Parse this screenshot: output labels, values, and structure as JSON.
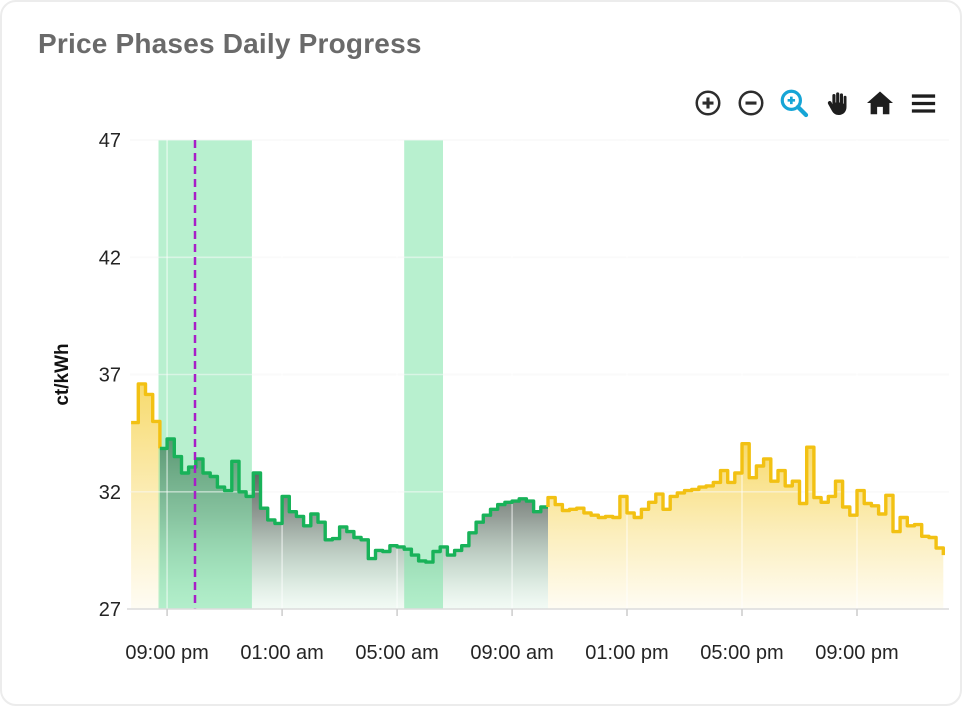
{
  "card": {
    "title": "Price Phases Daily Progress"
  },
  "toolbar": {
    "icon_color": "#2d2d2d",
    "active_color": "#16a5d6",
    "icons": [
      {
        "name": "zoom-in-icon",
        "active": false
      },
      {
        "name": "zoom-out-icon",
        "active": false
      },
      {
        "name": "box-zoom-magnifier-icon",
        "active": true
      },
      {
        "name": "pan-hand-icon",
        "active": false
      },
      {
        "name": "home-reset-icon",
        "active": false
      },
      {
        "name": "menu-icon",
        "active": false
      }
    ]
  },
  "chart_data": {
    "type": "area",
    "subtype": "stepped-price-phases",
    "title": "Price Phases Daily Progress",
    "step_hours": 0.25,
    "y_axis": {
      "title": "ct/kWh",
      "ticks": [
        47,
        42,
        37,
        32,
        27
      ],
      "range": [
        27,
        47
      ]
    },
    "x_axis": {
      "range": [
        19.71,
        48.13
      ],
      "note": "hours since midnight of first day; 24+ means next day",
      "ticks": [
        {
          "t": 21,
          "label": "09:00 pm"
        },
        {
          "t": 25,
          "label": "01:00 am"
        },
        {
          "t": 29,
          "label": "05:00 am"
        },
        {
          "t": 33,
          "label": "09:00 am"
        },
        {
          "t": 37,
          "label": "01:00 pm"
        },
        {
          "t": 41,
          "label": "05:00 pm"
        },
        {
          "t": 45,
          "label": "09:00 pm"
        }
      ]
    },
    "grid": {
      "h_color": "#f4f4f4",
      "overlay_color": "rgba(255,255,255,0.5)",
      "axis_color": "#dcdcdc",
      "tick_color": "#cfcfcf"
    },
    "bands": {
      "color": "#7de3a7",
      "opacity": 0.55,
      "items": [
        {
          "from": 20.7,
          "to": 23.95
        },
        {
          "from": 29.25,
          "to": 30.6
        }
      ]
    },
    "current_time_line": {
      "t": 21.97,
      "color": "#a81ec8",
      "style": "dashed"
    },
    "series": [
      {
        "name": "yellow-phase-1",
        "line_color": "#f2c113",
        "fill_gradient": "yellow",
        "end_value": 33.85,
        "points": [
          [
            19.75,
            34.95
          ],
          [
            20.0,
            36.6
          ],
          [
            20.25,
            36.15
          ],
          [
            20.5,
            35.0
          ]
        ]
      },
      {
        "name": "green-cheap-phase",
        "line_color": "#18b259",
        "fill_gradient": "dark-green",
        "points": [
          [
            20.75,
            33.85
          ],
          [
            21.0,
            34.25
          ],
          [
            21.25,
            33.5
          ],
          [
            21.5,
            32.8
          ],
          [
            21.75,
            33.05
          ],
          [
            22.0,
            33.4
          ],
          [
            22.25,
            32.8
          ],
          [
            22.5,
            32.65
          ],
          [
            22.75,
            32.2
          ],
          [
            23.0,
            32.05
          ],
          [
            23.25,
            33.3
          ],
          [
            23.5,
            32.0
          ],
          [
            23.75,
            31.8
          ],
          [
            24.0,
            32.8
          ],
          [
            24.25,
            31.3
          ],
          [
            24.5,
            30.8
          ],
          [
            24.75,
            30.65
          ],
          [
            25.0,
            31.8
          ],
          [
            25.25,
            31.15
          ],
          [
            25.5,
            30.95
          ],
          [
            25.75,
            30.55
          ],
          [
            26.0,
            31.05
          ],
          [
            26.25,
            30.7
          ],
          [
            26.5,
            29.95
          ],
          [
            26.75,
            30.0
          ],
          [
            27.0,
            30.5
          ],
          [
            27.25,
            30.3
          ],
          [
            27.5,
            30.05
          ],
          [
            27.75,
            29.95
          ],
          [
            28.0,
            29.15
          ],
          [
            28.25,
            29.5
          ],
          [
            28.5,
            29.45
          ],
          [
            28.75,
            29.7
          ],
          [
            29.0,
            29.65
          ],
          [
            29.25,
            29.55
          ],
          [
            29.5,
            29.3
          ],
          [
            29.75,
            29.05
          ],
          [
            30.0,
            29.0
          ],
          [
            30.25,
            29.45
          ],
          [
            30.5,
            29.65
          ],
          [
            30.75,
            29.3
          ],
          [
            31.0,
            29.5
          ],
          [
            31.25,
            29.7
          ],
          [
            31.5,
            30.25
          ],
          [
            31.75,
            30.7
          ],
          [
            32.0,
            31.0
          ],
          [
            32.25,
            31.25
          ],
          [
            32.5,
            31.45
          ],
          [
            32.75,
            31.55
          ],
          [
            33.0,
            31.6
          ],
          [
            33.25,
            31.7
          ],
          [
            33.5,
            31.6
          ],
          [
            33.75,
            31.15
          ],
          [
            34.0,
            31.35
          ]
        ]
      },
      {
        "name": "yellow-phase-2",
        "line_color": "#f2c113",
        "fill_gradient": "yellow",
        "start_value": 31.35,
        "end_value": 29.3,
        "points": [
          [
            34.25,
            31.75
          ],
          [
            34.5,
            31.45
          ],
          [
            34.75,
            31.2
          ],
          [
            35.0,
            31.25
          ],
          [
            35.25,
            31.3
          ],
          [
            35.5,
            31.1
          ],
          [
            35.75,
            31.0
          ],
          [
            36.0,
            30.9
          ],
          [
            36.25,
            30.95
          ],
          [
            36.5,
            30.9
          ],
          [
            36.75,
            31.8
          ],
          [
            37.0,
            31.1
          ],
          [
            37.25,
            30.9
          ],
          [
            37.5,
            31.25
          ],
          [
            37.75,
            31.55
          ],
          [
            38.0,
            31.9
          ],
          [
            38.25,
            31.25
          ],
          [
            38.5,
            31.8
          ],
          [
            38.75,
            31.95
          ],
          [
            39.0,
            32.05
          ],
          [
            39.25,
            32.1
          ],
          [
            39.5,
            32.2
          ],
          [
            39.75,
            32.25
          ],
          [
            40.0,
            32.4
          ],
          [
            40.25,
            32.9
          ],
          [
            40.5,
            32.4
          ],
          [
            40.75,
            32.8
          ],
          [
            41.0,
            34.05
          ],
          [
            41.25,
            32.6
          ],
          [
            41.5,
            33.1
          ],
          [
            41.75,
            33.4
          ],
          [
            42.0,
            32.45
          ],
          [
            42.25,
            32.9
          ],
          [
            42.5,
            32.25
          ],
          [
            42.75,
            32.45
          ],
          [
            43.0,
            31.5
          ],
          [
            43.25,
            33.9
          ],
          [
            43.5,
            31.75
          ],
          [
            43.75,
            31.55
          ],
          [
            44.0,
            31.8
          ],
          [
            44.25,
            32.45
          ],
          [
            44.5,
            31.35
          ],
          [
            44.75,
            31.0
          ],
          [
            45.0,
            32.05
          ],
          [
            45.25,
            31.5
          ],
          [
            45.5,
            31.4
          ],
          [
            45.75,
            31.05
          ],
          [
            46.0,
            31.85
          ],
          [
            46.25,
            30.3
          ],
          [
            46.5,
            30.9
          ],
          [
            46.75,
            30.55
          ],
          [
            47.0,
            30.6
          ],
          [
            47.25,
            30.1
          ],
          [
            47.5,
            30.05
          ],
          [
            47.75,
            29.6
          ]
        ]
      }
    ]
  }
}
